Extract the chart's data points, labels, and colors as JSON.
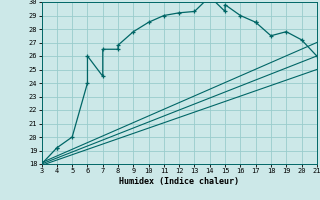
{
  "xlabel": "Humidex (Indice chaleur)",
  "bg_color": "#cce8e8",
  "grid_color": "#99cccc",
  "line_color": "#006666",
  "xlim": [
    3,
    21
  ],
  "ylim": [
    18,
    30
  ],
  "xticks": [
    3,
    4,
    5,
    6,
    7,
    8,
    9,
    10,
    11,
    12,
    13,
    14,
    15,
    16,
    17,
    18,
    19,
    20,
    21
  ],
  "yticks": [
    18,
    19,
    20,
    21,
    22,
    23,
    24,
    25,
    26,
    27,
    28,
    29,
    30
  ],
  "main_x": [
    3,
    4,
    4,
    5,
    6,
    6,
    7,
    7,
    8,
    8,
    9,
    10,
    11,
    12,
    13,
    14,
    15,
    15,
    16,
    17,
    17,
    18,
    19,
    20,
    21
  ],
  "main_y": [
    18.0,
    19.2,
    19.2,
    20.0,
    24.0,
    26.0,
    24.5,
    26.5,
    26.5,
    26.8,
    27.8,
    28.5,
    29.0,
    29.2,
    29.3,
    30.4,
    29.3,
    29.8,
    29.0,
    28.5,
    28.5,
    27.5,
    27.8,
    27.2,
    26.0
  ],
  "line1_x": [
    3,
    21
  ],
  "line1_y": [
    18.1,
    27.0
  ],
  "line2_x": [
    3,
    21
  ],
  "line2_y": [
    18.0,
    26.0
  ],
  "line3_x": [
    3,
    21
  ],
  "line3_y": [
    17.9,
    25.0
  ]
}
